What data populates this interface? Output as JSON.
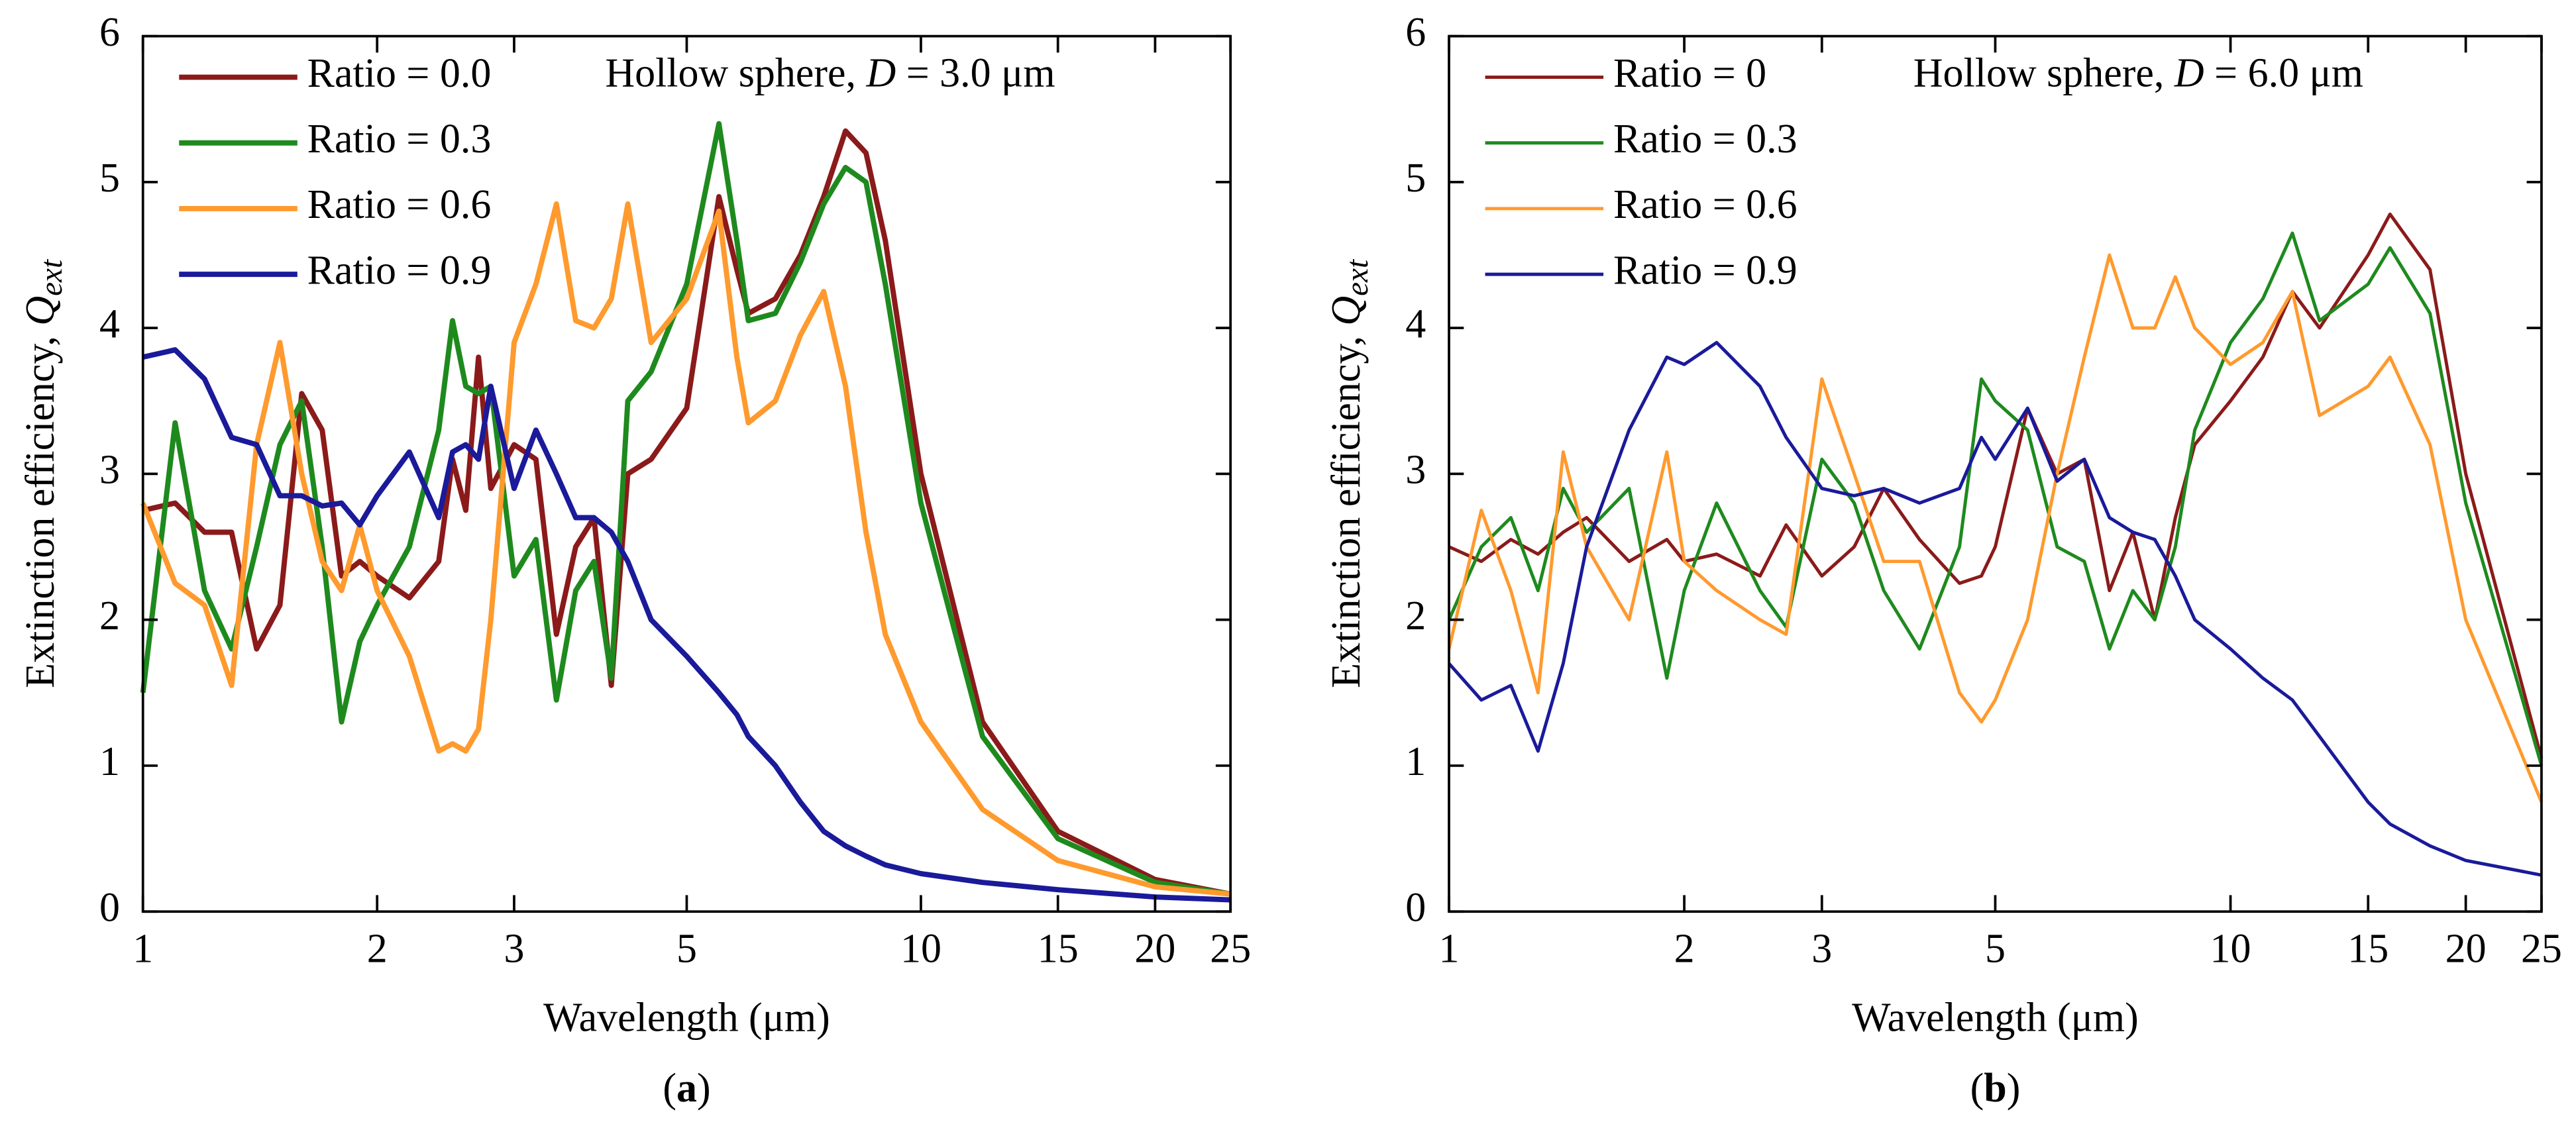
{
  "chart_data": [
    {
      "type": "line",
      "annotation": [
        "Hollow sphere, ",
        "D",
        " = 3.0 μm"
      ],
      "ylabel": [
        "Extinction efficiency, ",
        "Q",
        "ext"
      ],
      "xlabel": "Wavelength (μm)",
      "caption": [
        "(",
        "a",
        ")"
      ],
      "log_x": true,
      "legend": "upper left",
      "xlim": [
        1,
        25
      ],
      "ylim": [
        0,
        6
      ],
      "xticks": [
        1,
        2,
        3,
        5,
        10,
        15,
        20,
        25
      ],
      "yticks": [
        0,
        1,
        2,
        3,
        4,
        5,
        6
      ],
      "x": [
        1,
        1.1,
        1.2,
        1.3,
        1.4,
        1.5,
        1.6,
        1.7,
        1.8,
        1.9,
        2,
        2.2,
        2.4,
        2.5,
        2.6,
        2.7,
        2.8,
        3,
        3.2,
        3.4,
        3.6,
        3.8,
        4,
        4.2,
        4.5,
        5,
        5.5,
        5.8,
        6,
        6.5,
        7,
        7.5,
        8,
        8.5,
        9,
        10,
        12,
        15,
        20,
        25
      ],
      "series": [
        {
          "name": "Ratio = 0.0",
          "color": "#8b1a1a",
          "values": [
            2.75,
            2.8,
            2.6,
            2.6,
            1.8,
            2.1,
            3.55,
            3.3,
            2.3,
            2.4,
            2.3,
            2.15,
            2.4,
            3.1,
            2.75,
            3.8,
            2.9,
            3.2,
            3.1,
            1.9,
            2.5,
            2.7,
            1.55,
            3.0,
            3.1,
            3.45,
            4.9,
            4.4,
            4.1,
            4.2,
            4.5,
            4.9,
            5.35,
            5.2,
            4.6,
            3.0,
            1.3,
            0.55,
            0.22,
            0.12
          ]
        },
        {
          "name": "Ratio = 0.3",
          "color": "#1e8a1e",
          "values": [
            1.5,
            3.35,
            2.2,
            1.8,
            2.5,
            3.2,
            3.5,
            2.5,
            1.3,
            1.85,
            2.1,
            2.5,
            3.3,
            4.05,
            3.6,
            3.55,
            3.6,
            2.3,
            2.55,
            1.45,
            2.2,
            2.4,
            1.6,
            3.5,
            3.7,
            4.3,
            5.4,
            4.6,
            4.05,
            4.1,
            4.45,
            4.85,
            5.1,
            5.0,
            4.3,
            2.8,
            1.2,
            0.5,
            0.2,
            0.12
          ]
        },
        {
          "name": "Ratio = 0.6",
          "color": "#ff9a2e",
          "values": [
            2.8,
            2.25,
            2.1,
            1.55,
            3.2,
            3.9,
            3.0,
            2.4,
            2.2,
            2.65,
            2.2,
            1.75,
            1.1,
            1.15,
            1.1,
            1.25,
            2.0,
            3.9,
            4.3,
            4.85,
            4.05,
            4.0,
            4.2,
            4.85,
            3.9,
            4.2,
            4.8,
            3.8,
            3.35,
            3.5,
            3.95,
            4.25,
            3.6,
            2.6,
            1.9,
            1.3,
            0.7,
            0.35,
            0.17,
            0.12
          ]
        },
        {
          "name": "Ratio = 0.9",
          "color": "#1a1a9a",
          "values": [
            3.8,
            3.85,
            3.65,
            3.25,
            3.2,
            2.85,
            2.85,
            2.78,
            2.8,
            2.65,
            2.85,
            3.15,
            2.7,
            3.15,
            3.2,
            3.1,
            3.6,
            2.9,
            3.3,
            3.0,
            2.7,
            2.7,
            2.6,
            2.4,
            2.0,
            1.75,
            1.5,
            1.35,
            1.2,
            1.0,
            0.75,
            0.55,
            0.45,
            0.38,
            0.32,
            0.26,
            0.2,
            0.15,
            0.1,
            0.08
          ]
        }
      ]
    },
    {
      "type": "line",
      "annotation": [
        "Hollow sphere, ",
        "D",
        " = 6.0 μm"
      ],
      "ylabel": [
        "Extinction efficiency, ",
        "Q",
        "ext"
      ],
      "xlabel": "Wavelength (μm)",
      "caption": [
        "(",
        "b",
        ")"
      ],
      "log_x": true,
      "legend": "upper left",
      "xlim": [
        1,
        25
      ],
      "ylim": [
        0,
        6
      ],
      "xticks": [
        1,
        2,
        3,
        5,
        10,
        15,
        20,
        25
      ],
      "yticks": [
        0,
        1,
        2,
        3,
        4,
        5,
        6
      ],
      "x": [
        1,
        1.1,
        1.2,
        1.3,
        1.4,
        1.5,
        1.7,
        1.9,
        2,
        2.2,
        2.5,
        2.7,
        3,
        3.3,
        3.6,
        4,
        4.5,
        4.8,
        5,
        5.5,
        6,
        6.5,
        7,
        7.5,
        8,
        8.5,
        9,
        10,
        11,
        12,
        13,
        15,
        16,
        18,
        20,
        25
      ],
      "series": [
        {
          "name": "Ratio = 0",
          "color": "#8b1a1a",
          "values": [
            2.5,
            2.4,
            2.55,
            2.45,
            2.6,
            2.7,
            2.4,
            2.55,
            2.4,
            2.45,
            2.3,
            2.65,
            2.3,
            2.5,
            2.9,
            2.55,
            2.25,
            2.3,
            2.5,
            3.45,
            3.0,
            3.1,
            2.2,
            2.6,
            2.0,
            2.7,
            3.2,
            3.5,
            3.8,
            4.25,
            4.0,
            4.5,
            4.78,
            4.4,
            3.0,
            1.05
          ]
        },
        {
          "name": "Ratio = 0.3",
          "color": "#1e8a1e",
          "values": [
            2.0,
            2.5,
            2.7,
            2.2,
            2.9,
            2.6,
            2.9,
            1.6,
            2.2,
            2.8,
            2.2,
            1.95,
            3.1,
            2.8,
            2.2,
            1.8,
            2.5,
            3.65,
            3.5,
            3.3,
            2.5,
            2.4,
            1.8,
            2.2,
            2.0,
            2.5,
            3.3,
            3.9,
            4.2,
            4.65,
            4.05,
            4.3,
            4.55,
            4.1,
            2.8,
            1.0
          ]
        },
        {
          "name": "Ratio = 0.6",
          "color": "#ff9a2e",
          "values": [
            1.8,
            2.75,
            2.2,
            1.5,
            3.15,
            2.5,
            2.0,
            3.15,
            2.4,
            2.2,
            2.0,
            1.9,
            3.65,
            3.0,
            2.4,
            2.4,
            1.5,
            1.3,
            1.45,
            2.0,
            3.0,
            3.8,
            4.5,
            4.0,
            4.0,
            4.35,
            4.0,
            3.75,
            3.9,
            4.25,
            3.4,
            3.6,
            3.8,
            3.2,
            2.0,
            0.75
          ]
        },
        {
          "name": "Ratio = 0.9",
          "color": "#1a1a9a",
          "values": [
            1.7,
            1.45,
            1.55,
            1.1,
            1.7,
            2.5,
            3.3,
            3.8,
            3.75,
            3.9,
            3.6,
            3.25,
            2.9,
            2.85,
            2.9,
            2.8,
            2.9,
            3.25,
            3.1,
            3.45,
            2.95,
            3.1,
            2.7,
            2.6,
            2.55,
            2.3,
            2.0,
            1.8,
            1.6,
            1.45,
            1.2,
            0.75,
            0.6,
            0.45,
            0.35,
            0.25
          ]
        }
      ]
    }
  ]
}
